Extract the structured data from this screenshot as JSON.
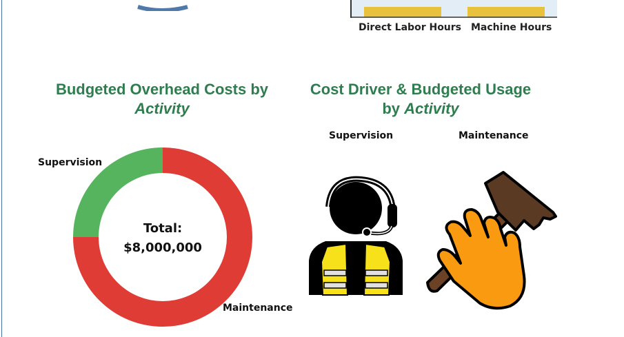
{
  "top_bar_chart": {
    "categories": [
      "Direct Labor Hours",
      "Machine Hours"
    ],
    "bar_color": "#e8c13d",
    "axis_color": "#333333",
    "bg_color": "#e3edf6"
  },
  "overhead_heading": {
    "line1": "Budgeted Overhead Costs by",
    "line2_prefix": "",
    "line2_italic": "Activity"
  },
  "usage_heading": {
    "line1": "Cost Driver & Budgeted Usage",
    "line2_prefix": "by ",
    "line2_italic": "Activity"
  },
  "chart_data": {
    "type": "pie",
    "categories": [
      "Supervision",
      "Maintenance"
    ],
    "values": [
      25,
      75
    ],
    "colors": [
      "#56b45e",
      "#e03c36"
    ],
    "center_label_line1": "Total:",
    "center_label_line2": "$8,000,000"
  },
  "activities": [
    {
      "label": "Supervision",
      "icon": "supervisor-headset-vest-icon"
    },
    {
      "label": "Maintenance",
      "icon": "hand-hammer-icon"
    }
  ]
}
